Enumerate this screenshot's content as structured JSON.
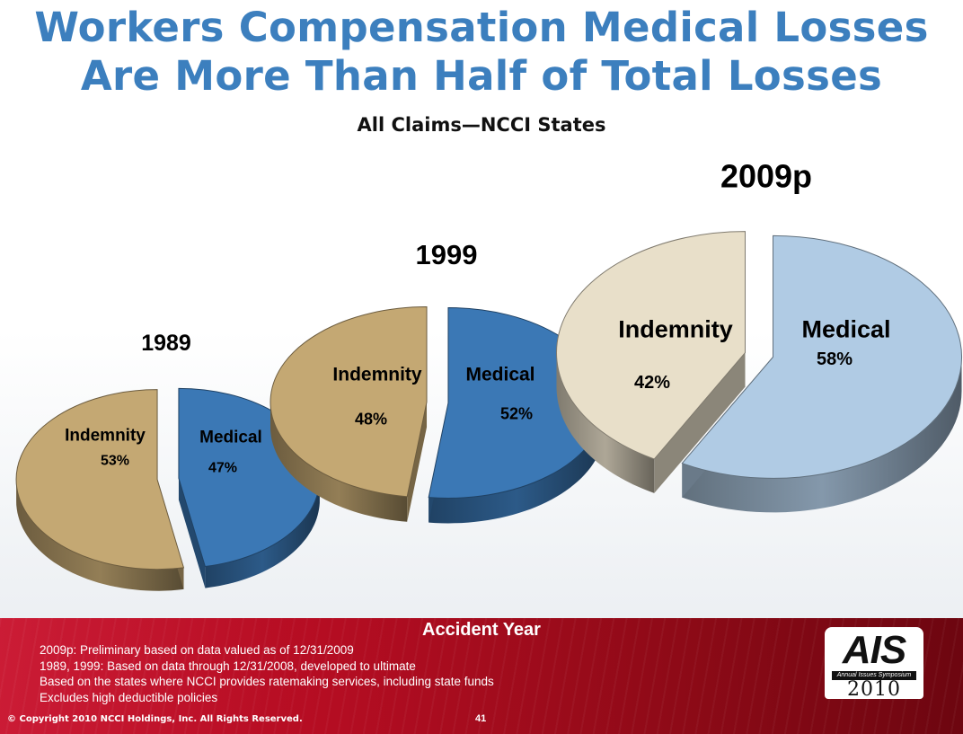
{
  "title": {
    "line1": "Workers Compensation Medical Losses",
    "line2": "Are More Than Half of Total Losses"
  },
  "subtitle": "All Claims—NCCI States",
  "chart_data": [
    {
      "type": "pie",
      "title": "1989",
      "categories": [
        "Indemnity",
        "Medical"
      ],
      "values": [
        53,
        47
      ],
      "value_labels": [
        "53%",
        "47%"
      ],
      "colors": [
        "#c4a873",
        "#3b78b5"
      ],
      "style": "3d-exploded"
    },
    {
      "type": "pie",
      "title": "1999",
      "categories": [
        "Indemnity",
        "Medical"
      ],
      "values": [
        48,
        52
      ],
      "value_labels": [
        "48%",
        "52%"
      ],
      "colors": [
        "#c4a873",
        "#3b78b5"
      ],
      "style": "3d-exploded"
    },
    {
      "type": "pie",
      "title": "2009p",
      "categories": [
        "Indemnity",
        "Medical"
      ],
      "values": [
        42,
        58
      ],
      "value_labels": [
        "42%",
        "58%"
      ],
      "colors": [
        "#e8dfc9",
        "#b0cbe4"
      ],
      "style": "3d-exploded"
    }
  ],
  "footer": {
    "xlabel": "Accident Year",
    "notes": [
      "2009p: Preliminary based on data valued as of 12/31/2009",
      "1989, 1999: Based on data through 12/31/2008, developed to ultimate",
      "Based on the states where NCCI provides ratemaking services, including state funds",
      "Excludes high deductible policies"
    ],
    "copyright": "© Copyright 2010 NCCI Holdings, Inc. All Rights Reserved.",
    "page_number": "41",
    "logo": {
      "main": "AIS",
      "sub": "Annual Issues Symposium",
      "year": "2010"
    }
  }
}
